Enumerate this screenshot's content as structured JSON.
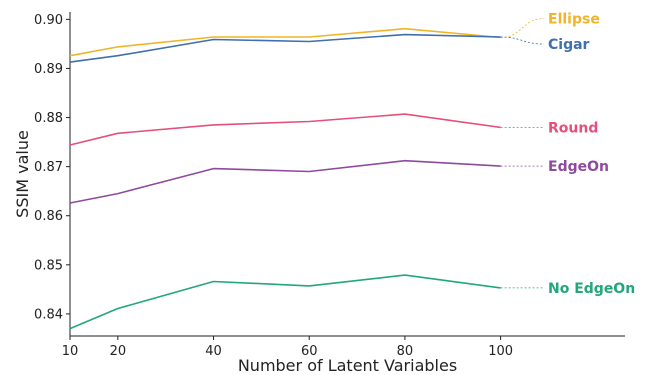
{
  "chart_data": {
    "type": "line",
    "title": "",
    "xlabel": "Number of Latent Variables",
    "ylabel": "SSIM value",
    "x": [
      10,
      20,
      40,
      60,
      80,
      100
    ],
    "xticks": [
      10,
      20,
      40,
      60,
      80,
      100
    ],
    "xlim": [
      10,
      126
    ],
    "yticks": [
      0.84,
      0.85,
      0.86,
      0.87,
      0.88,
      0.89,
      0.9
    ],
    "ylim": [
      0.8355,
      0.9015
    ],
    "ytick_labels": [
      "0.84",
      "0.85",
      "0.86",
      "0.87",
      "0.88",
      "0.89",
      "0.90"
    ],
    "grid": false,
    "legend": "inline labels at right end of lines",
    "series": [
      {
        "name": "Ellipse",
        "color": "#f0b429",
        "values": [
          0.8926,
          0.8944,
          0.8964,
          0.8964,
          0.8981,
          0.8963
        ]
      },
      {
        "name": "Cigar",
        "color": "#3f6fad",
        "values": [
          0.8913,
          0.8926,
          0.8959,
          0.8955,
          0.8969,
          0.8964
        ]
      },
      {
        "name": "Round",
        "color": "#e4507a",
        "values": [
          0.8744,
          0.8768,
          0.8785,
          0.8792,
          0.8807,
          0.878
        ]
      },
      {
        "name": "EdgeOn",
        "color": "#8e4a9e",
        "values": [
          0.8626,
          0.8645,
          0.8696,
          0.869,
          0.8712,
          0.8701
        ]
      },
      {
        "name": "No EdgeOn",
        "color": "#22a77b",
        "values": [
          0.837,
          0.8411,
          0.8466,
          0.8457,
          0.8479,
          0.8453
        ]
      }
    ]
  }
}
